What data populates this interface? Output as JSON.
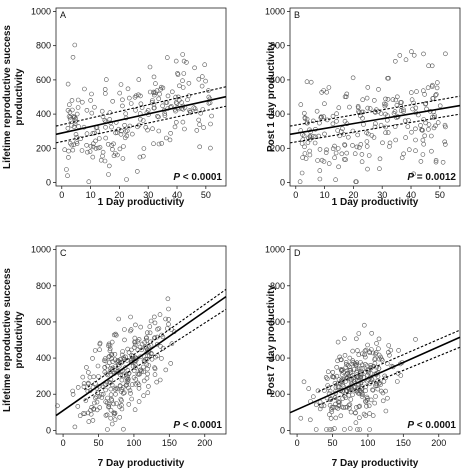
{
  "chart_data": [
    {
      "type": "scatter",
      "panel_label": "A",
      "xlabel": "1 Day productivity",
      "ylabel": [
        "Lifetime reproductive success",
        "productivity"
      ],
      "xlim": [
        -2,
        57
      ],
      "ylim": [
        -20,
        1020
      ],
      "xticks": [
        0,
        10,
        20,
        30,
        40,
        50
      ],
      "yticks": [
        0,
        200,
        400,
        600,
        800,
        1000
      ],
      "p_label": "P",
      "p_value": "< 0.0001",
      "regression": {
        "x": [
          -2,
          57
        ],
        "y": [
          282,
          502
        ]
      },
      "ci_upper": {
        "x": [
          -2,
          57
        ],
        "y": [
          330,
          560
        ]
      },
      "ci_lower": {
        "x": [
          -2,
          57
        ],
        "y": [
          232,
          446
        ]
      },
      "spread": 140,
      "point_count": 240,
      "seed": 11
    },
    {
      "type": "scatter",
      "panel_label": "B",
      "xlabel": "1 Day productivity",
      "ylabel": [
        "Post 1 day productivity"
      ],
      "xlim": [
        -2,
        57
      ],
      "ylim": [
        -20,
        1020
      ],
      "xticks": [
        0,
        10,
        20,
        30,
        40,
        50
      ],
      "yticks": [
        0,
        200,
        400,
        600,
        800,
        1000
      ],
      "p_label": "P",
      "p_value": "= 0.0012",
      "regression": {
        "x": [
          -2,
          57
        ],
        "y": [
          282,
          450
        ]
      },
      "ci_upper": {
        "x": [
          -2,
          57
        ],
        "y": [
          330,
          505
        ]
      },
      "ci_lower": {
        "x": [
          -2,
          57
        ],
        "y": [
          232,
          400
        ]
      },
      "spread": 140,
      "point_count": 240,
      "seed": 23
    },
    {
      "type": "scatter",
      "panel_label": "C",
      "xlabel": "7 Day productivity",
      "ylabel": [
        "Lifetime reproductive success",
        "productivity"
      ],
      "xlim": [
        -10,
        230
      ],
      "ylim": [
        -20,
        1020
      ],
      "xticks": [
        0,
        50,
        100,
        150,
        200
      ],
      "yticks": [
        0,
        200,
        400,
        600,
        800,
        1000
      ],
      "p_label": "P",
      "p_value": "< 0.0001",
      "regression": {
        "x": [
          -10,
          230
        ],
        "y": [
          82,
          740
        ]
      },
      "ci_upper": {
        "x": [
          30,
          230
        ],
        "y": [
          225,
          780
        ]
      },
      "ci_lower": {
        "x": [
          30,
          230
        ],
        "y": [
          165,
          670
        ]
      },
      "spread": 120,
      "point_count": 300,
      "seed": 37
    },
    {
      "type": "scatter",
      "panel_label": "D",
      "xlabel": "7 Day productivity",
      "ylabel": [
        "Post 7 day productivity"
      ],
      "xlim": [
        -10,
        230
      ],
      "ylim": [
        -20,
        1020
      ],
      "xticks": [
        0,
        50,
        100,
        150,
        200
      ],
      "yticks": [
        0,
        200,
        400,
        600,
        800,
        1000
      ],
      "p_label": "P",
      "p_value": "< 0.0001",
      "regression": {
        "x": [
          -10,
          230
        ],
        "y": [
          98,
          515
        ]
      },
      "ci_upper": {
        "x": [
          30,
          230
        ],
        "y": [
          215,
          555
        ]
      },
      "ci_lower": {
        "x": [
          30,
          230
        ],
        "y": [
          140,
          460
        ]
      },
      "spread": 110,
      "point_count": 300,
      "seed": 53
    }
  ]
}
